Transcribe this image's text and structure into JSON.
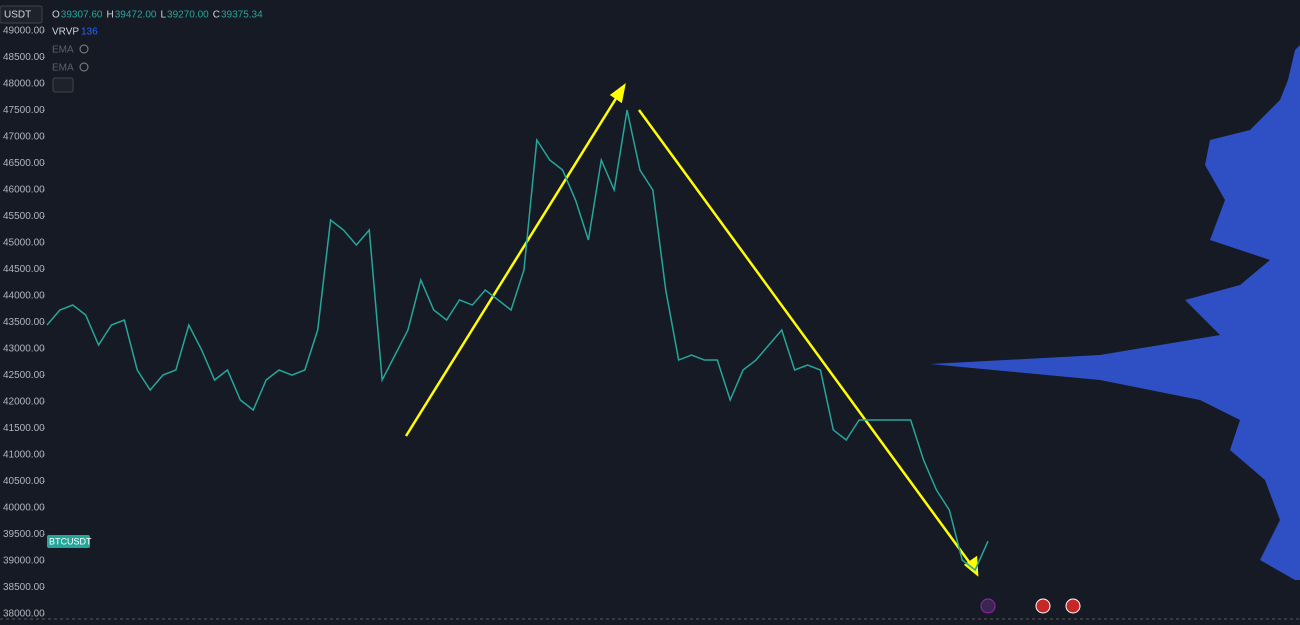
{
  "header": {
    "symbol": "USDT",
    "ohlc": [
      {
        "label": "O",
        "value": "39307.60"
      },
      {
        "label": "H",
        "value": "39472.00"
      },
      {
        "label": "L",
        "value": "39270.00"
      },
      {
        "label": "C",
        "value": "39375.34"
      }
    ],
    "indicators": [
      {
        "name": "VRVP",
        "value": "136"
      },
      {
        "name": "EMA"
      },
      {
        "name": "EMA"
      }
    ]
  },
  "chart_data": {
    "type": "line",
    "series": [
      {
        "name": "BTCUSDT",
        "color": "#26a69a",
        "values": [
          43453,
          43736,
          43830,
          43642,
          43075,
          43453,
          43547,
          42604,
          42226,
          42509,
          42604,
          43453,
          42981,
          42415,
          42604,
          42038,
          41849,
          42415,
          42604,
          42509,
          42604,
          43358,
          45434,
          45245,
          44962,
          45245,
          42415,
          42887,
          43358,
          44302,
          43736,
          43547,
          43925,
          43830,
          44113,
          43925,
          43736,
          44491,
          46943,
          46566,
          46377,
          45811,
          45057,
          46566,
          46000,
          47509,
          46377,
          46000,
          44113,
          42792,
          42887,
          42792,
          42792,
          42038,
          42604,
          42792,
          43075,
          43358,
          42604,
          42698,
          42604,
          41472,
          41283,
          41660,
          41660,
          41660,
          41660,
          41660,
          40906,
          40340,
          39962,
          39019,
          38830,
          39375
        ]
      }
    ],
    "ylim": [
      37887,
      49585
    ],
    "yticks": [
      {
        "value": 38000,
        "label": "38000.00"
      },
      {
        "value": 38500,
        "label": "38500.00"
      },
      {
        "value": 39000,
        "label": "39000.00"
      },
      {
        "value": 39500,
        "label": "39500.00"
      },
      {
        "value": 40000,
        "label": "40000.00"
      },
      {
        "value": 40500,
        "label": "40500.00"
      },
      {
        "value": 41000,
        "label": "41000.00"
      },
      {
        "value": 41500,
        "label": "41500.00"
      },
      {
        "value": 42000,
        "label": "42000.00"
      },
      {
        "value": 42500,
        "label": "42500.00"
      },
      {
        "value": 43000,
        "label": "43000.00"
      },
      {
        "value": 43500,
        "label": "43500.00"
      },
      {
        "value": 44000,
        "label": "44000.00"
      },
      {
        "value": 44500,
        "label": "44500.00"
      },
      {
        "value": 45000,
        "label": "45000.00"
      },
      {
        "value": 45500,
        "label": "45500.00"
      },
      {
        "value": 46000,
        "label": "46000.00"
      },
      {
        "value": 46500,
        "label": "46500.00"
      },
      {
        "value": 47000,
        "label": "47000.00"
      },
      {
        "value": 47500,
        "label": "47500.00"
      },
      {
        "value": 48000,
        "label": "48000.00"
      },
      {
        "value": 48500,
        "label": "48500.00"
      },
      {
        "value": 49000,
        "label": "49000.00"
      }
    ]
  }
}
